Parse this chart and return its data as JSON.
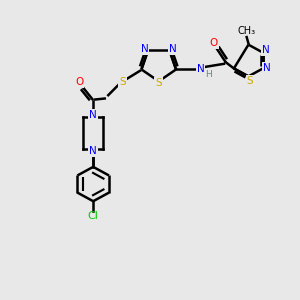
{
  "bg_color": "#e8e8e8",
  "figsize": [
    3.0,
    3.0
  ],
  "dpi": 100,
  "bond_lw": 1.8,
  "font_size": 7.5,
  "atom_colors": {
    "N": "#0000ff",
    "S": "#ccaa00",
    "O": "#ff0000",
    "Cl": "#00cc00",
    "H": "#5a8a8a",
    "C": "#000000"
  },
  "layout": {
    "xlim": [
      0.0,
      8.5
    ],
    "ylim": [
      0.0,
      9.0
    ]
  }
}
